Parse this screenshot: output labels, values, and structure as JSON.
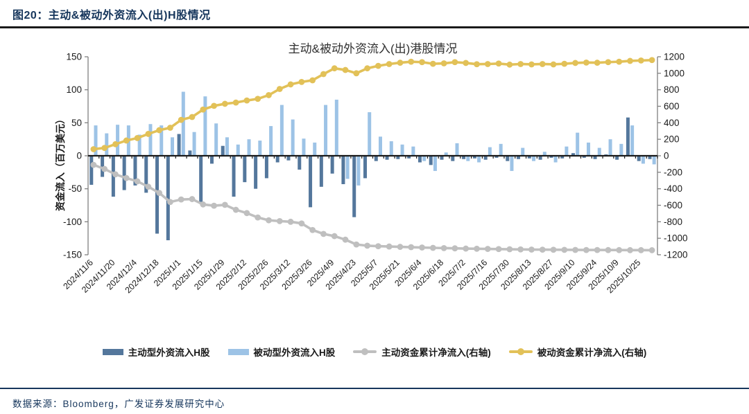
{
  "header": {
    "title": "图20：主动&被动外资流入(出)H股情况"
  },
  "footer": {
    "source": "数据来源：Bloomberg，广发证券发展研究中心"
  },
  "chart_data": {
    "type": "bar",
    "title": "主动&被动外资流入(出)港股情况",
    "ylabel_left": "资金流入（百万美元）",
    "left_axis": {
      "min": -150,
      "max": 150,
      "ticks": [
        150,
        100,
        50,
        0,
        -50,
        -100,
        -150
      ]
    },
    "right_axis": {
      "min": -1200,
      "max": 1200,
      "ticks": [
        1200,
        1000,
        800,
        600,
        400,
        200,
        0,
        -200,
        -400,
        -600,
        -800,
        -1000,
        -1200
      ]
    },
    "x_labels": [
      "2024/11/6",
      "2024/11/20",
      "2024/12/4",
      "2024/12/18",
      "2025/1/1",
      "2025/1/15",
      "2025/1/29",
      "2025/2/12",
      "2025/2/26",
      "2025/3/12",
      "2025/3/26",
      "2025/4/9",
      "2025/4/23",
      "2025/5/7",
      "2025/5/21",
      "2025/6/4",
      "2025/6/18",
      "2025/7/2",
      "2025/7/16",
      "2025/7/30",
      "2025/8/13",
      "2025/8/27",
      "2025/9/10",
      "2025/9/24",
      "2025/10/9",
      "2025/10/25"
    ],
    "x_label_every": 2,
    "series": [
      {
        "name": "主动型外资流入H股",
        "type": "bar",
        "axis": "left",
        "color": "#54779c",
        "values": [
          -44,
          -32,
          -62,
          -52,
          -45,
          -56,
          -118,
          -128,
          33,
          8,
          -70,
          -12,
          15,
          -62,
          -40,
          -50,
          -34,
          -10,
          -7,
          -21,
          -78,
          -47,
          -27,
          -43,
          -93,
          -34,
          -8,
          -6,
          -5,
          -4,
          -10,
          -14,
          -6,
          -8,
          -5,
          -4,
          -6,
          -3,
          -8,
          -5,
          -4,
          -6,
          -3,
          -4,
          4,
          -3,
          -5,
          2,
          -6,
          58,
          -8,
          -5
        ]
      },
      {
        "name": "被动型外资流入H股",
        "type": "bar",
        "axis": "left",
        "color": "#9dc3e6",
        "values": [
          46,
          34,
          47,
          46,
          32,
          48,
          46,
          28,
          97,
          36,
          90,
          49,
          28,
          17,
          25,
          23,
          45,
          77,
          55,
          26,
          20,
          77,
          85,
          -35,
          -45,
          66,
          29,
          22,
          17,
          14,
          -8,
          -23,
          5,
          19,
          -8,
          -10,
          13,
          18,
          -23,
          12,
          -8,
          6,
          -10,
          14,
          35,
          20,
          12,
          25,
          18,
          46,
          -12,
          -13
        ]
      },
      {
        "name": "主动资金累计净流入(右轴)",
        "type": "line",
        "axis": "right",
        "color": "#bfbfbf",
        "values": [
          -110,
          -160,
          -225,
          -270,
          -310,
          -375,
          -450,
          -560,
          -530,
          -525,
          -590,
          -605,
          -595,
          -655,
          -695,
          -748,
          -782,
          -792,
          -800,
          -820,
          -900,
          -947,
          -974,
          -1017,
          -1075,
          -1090,
          -1096,
          -1100,
          -1104,
          -1108,
          -1112,
          -1116,
          -1119,
          -1122,
          -1125,
          -1127,
          -1129,
          -1131,
          -1133,
          -1135,
          -1137,
          -1138,
          -1139,
          -1140,
          -1141,
          -1142,
          -1142,
          -1143,
          -1143,
          -1144,
          -1144,
          -1145
        ]
      },
      {
        "name": "被动资金累计净流入(右轴)",
        "type": "line",
        "axis": "right",
        "color": "#e2c158",
        "values": [
          80,
          95,
          140,
          185,
          215,
          265,
          310,
          340,
          435,
          470,
          560,
          605,
          630,
          645,
          670,
          690,
          735,
          810,
          865,
          895,
          915,
          990,
          1060,
          1040,
          1000,
          1060,
          1090,
          1112,
          1128,
          1140,
          1135,
          1115,
          1120,
          1135,
          1125,
          1110,
          1112,
          1118,
          1105,
          1112,
          1108,
          1112,
          1108,
          1115,
          1125,
          1130,
          1128,
          1135,
          1140,
          1150,
          1155,
          1160
        ]
      }
    ]
  }
}
